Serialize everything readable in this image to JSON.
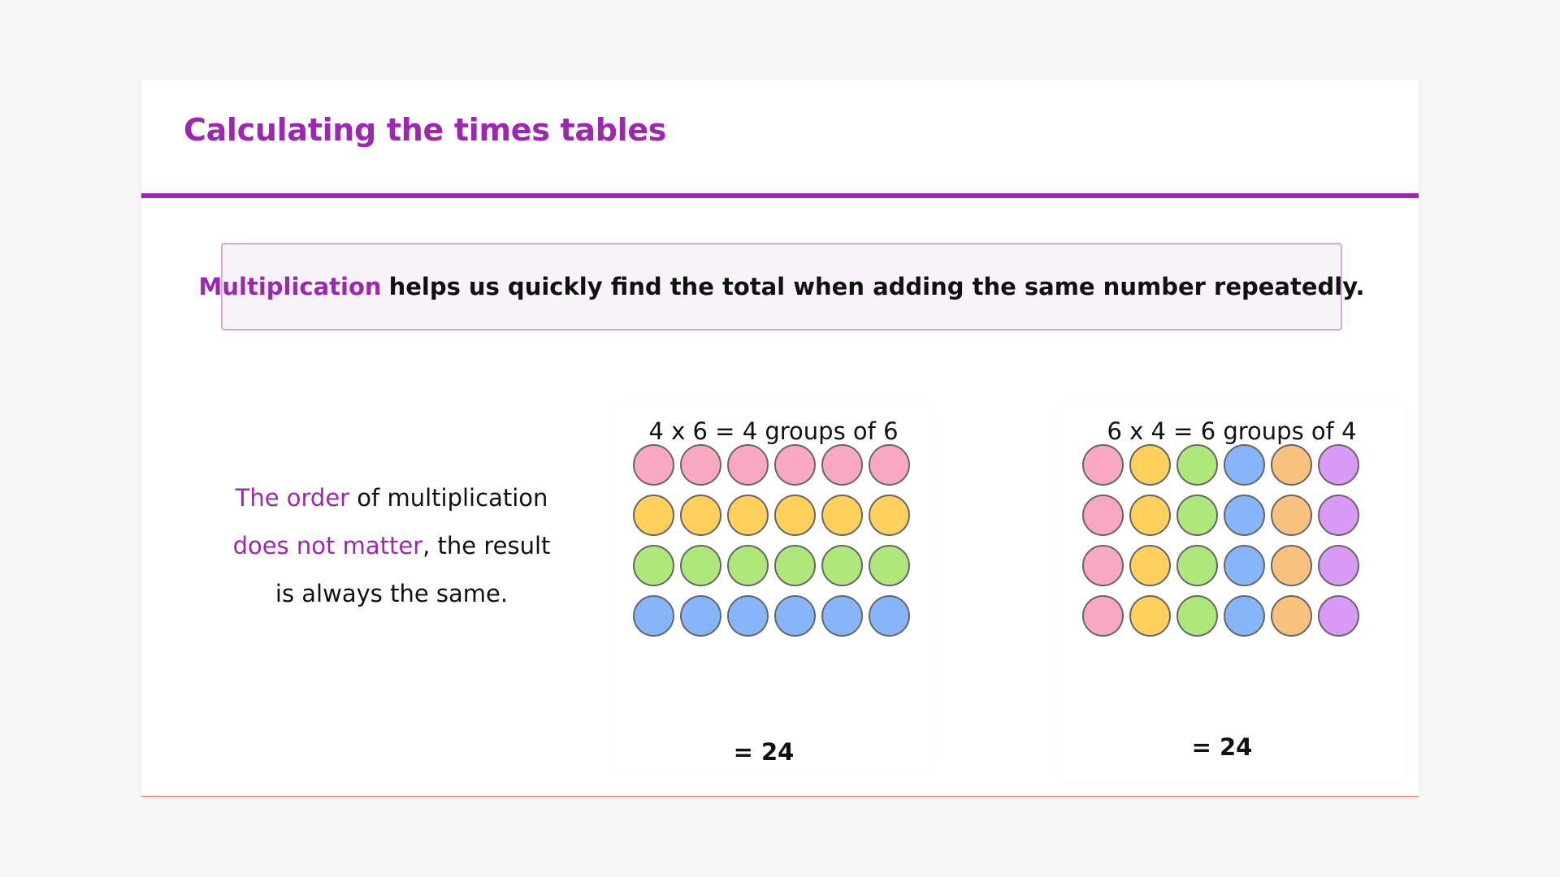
{
  "slide": {
    "title": "Calculating the times tables"
  },
  "definition": {
    "keyword": "Multiplication",
    "rest": "helps us quickly find the total when adding the same number repeatedly."
  },
  "order_note": {
    "part1_highlight": "The order",
    "part2": " of multiplication ",
    "part3_highlight": "does not matter",
    "part4": ", the result is always the same."
  },
  "arrays": [
    {
      "label": "4 x 6 = 4 groups of 6",
      "rows": 4,
      "cols": 6,
      "color_by": "row",
      "colors": [
        "#f9a8c2",
        "#ffd15c",
        "#aee87b",
        "#86b6f9"
      ],
      "total": "= 24"
    },
    {
      "label": "6 x 4 = 6 groups of 4",
      "rows": 4,
      "cols": 6,
      "color_by": "column",
      "colors": [
        "#f9a8c2",
        "#ffd15c",
        "#aee87b",
        "#86b6f9",
        "#f8c27e",
        "#d99af5"
      ],
      "total": "= 24"
    }
  ],
  "theme": {
    "accent": "#9c27b0",
    "box_border": "#d9a7e2",
    "box_background": "#f8f2f9"
  }
}
